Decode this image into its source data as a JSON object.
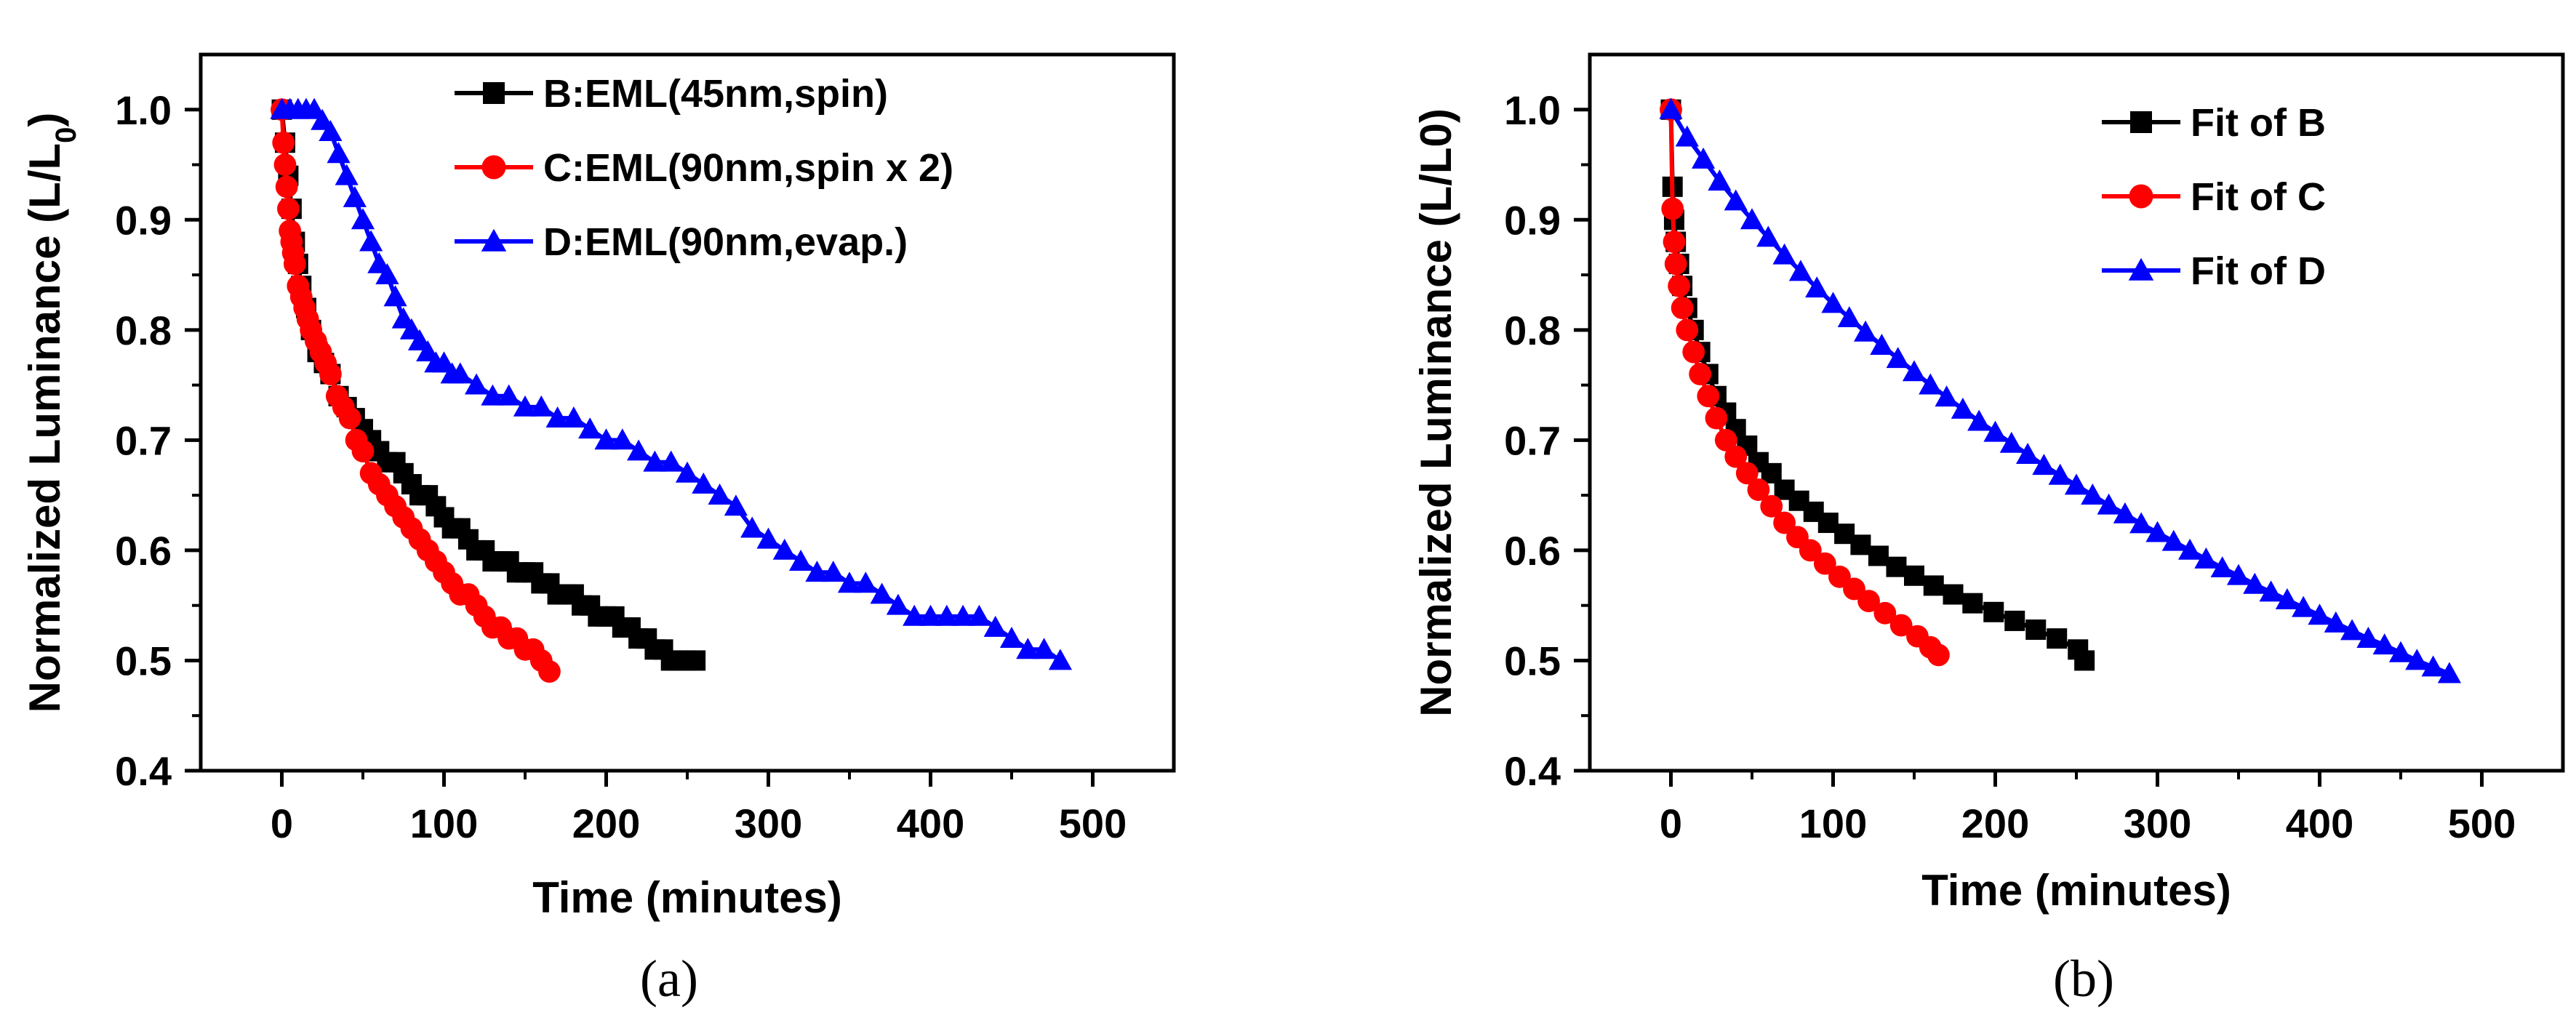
{
  "chart_data": [
    {
      "type": "scatter",
      "panel_label": "(a)",
      "title": "",
      "xlabel": "Time (minutes)",
      "ylabel_main": "Normalized Luminance (L/L",
      "ylabel_sub": "0",
      "ylabel_close": ")",
      "xlim": [
        -50,
        550
      ],
      "ylim": [
        0.4,
        1.05
      ],
      "xticks": [
        "0",
        "100",
        "200",
        "300",
        "400",
        "500"
      ],
      "yticks": [
        "0.4",
        "0.5",
        "0.6",
        "0.7",
        "0.8",
        "0.9",
        "1.0"
      ],
      "legend_position": "top-right",
      "series": [
        {
          "name": "B:EML(45nm,spin)",
          "color": "#000000",
          "marker": "square",
          "x": [
            0,
            2,
            4,
            6,
            8,
            10,
            12,
            15,
            18,
            22,
            26,
            30,
            35,
            40,
            45,
            50,
            55,
            60,
            65,
            70,
            75,
            80,
            85,
            90,
            95,
            100,
            105,
            110,
            115,
            120,
            125,
            130,
            135,
            140,
            145,
            150,
            155,
            160,
            165,
            170,
            175,
            180,
            185,
            190,
            195,
            200,
            205,
            210,
            215,
            220,
            225,
            230,
            235,
            240,
            245,
            250,
            255
          ],
          "y": [
            1.0,
            0.97,
            0.94,
            0.91,
            0.88,
            0.86,
            0.84,
            0.82,
            0.8,
            0.78,
            0.77,
            0.76,
            0.74,
            0.73,
            0.72,
            0.71,
            0.7,
            0.69,
            0.68,
            0.68,
            0.67,
            0.66,
            0.65,
            0.65,
            0.64,
            0.63,
            0.62,
            0.62,
            0.61,
            0.6,
            0.6,
            0.59,
            0.59,
            0.59,
            0.58,
            0.58,
            0.58,
            0.57,
            0.57,
            0.56,
            0.56,
            0.56,
            0.55,
            0.55,
            0.54,
            0.54,
            0.54,
            0.53,
            0.53,
            0.52,
            0.52,
            0.51,
            0.51,
            0.5,
            0.5,
            0.5,
            0.5
          ]
        },
        {
          "name": "C:EML(90nm,spin x 2)",
          "color": "#ff0000",
          "marker": "circle",
          "x": [
            0,
            1,
            2,
            3,
            4,
            5,
            6,
            7,
            8,
            10,
            12,
            14,
            16,
            18,
            21,
            24,
            27,
            30,
            34,
            38,
            42,
            46,
            50,
            55,
            60,
            65,
            70,
            75,
            80,
            85,
            90,
            95,
            100,
            105,
            110,
            115,
            120,
            125,
            130,
            135,
            140,
            145,
            150,
            155,
            160,
            165
          ],
          "y": [
            1.0,
            0.97,
            0.95,
            0.93,
            0.91,
            0.89,
            0.88,
            0.87,
            0.86,
            0.84,
            0.83,
            0.82,
            0.81,
            0.8,
            0.79,
            0.78,
            0.77,
            0.76,
            0.74,
            0.73,
            0.72,
            0.7,
            0.69,
            0.67,
            0.66,
            0.65,
            0.64,
            0.63,
            0.62,
            0.61,
            0.6,
            0.59,
            0.58,
            0.57,
            0.56,
            0.56,
            0.55,
            0.54,
            0.53,
            0.53,
            0.52,
            0.52,
            0.51,
            0.51,
            0.5,
            0.49
          ]
        },
        {
          "name": "D:EML(90nm,evap.)",
          "color": "#0000ff",
          "marker": "triangle",
          "x": [
            0,
            5,
            10,
            15,
            20,
            25,
            30,
            35,
            40,
            45,
            50,
            55,
            60,
            65,
            70,
            75,
            80,
            85,
            90,
            95,
            100,
            105,
            110,
            120,
            130,
            140,
            150,
            160,
            170,
            180,
            190,
            200,
            210,
            220,
            230,
            240,
            250,
            260,
            270,
            280,
            290,
            300,
            310,
            320,
            330,
            340,
            350,
            360,
            370,
            380,
            390,
            400,
            410,
            420,
            430,
            440,
            450,
            460,
            470,
            480
          ],
          "y": [
            1.0,
            1.0,
            1.0,
            1.0,
            1.0,
            0.99,
            0.98,
            0.96,
            0.94,
            0.92,
            0.9,
            0.88,
            0.86,
            0.85,
            0.83,
            0.81,
            0.8,
            0.79,
            0.78,
            0.77,
            0.77,
            0.76,
            0.76,
            0.75,
            0.74,
            0.74,
            0.73,
            0.73,
            0.72,
            0.72,
            0.71,
            0.7,
            0.7,
            0.69,
            0.68,
            0.68,
            0.67,
            0.66,
            0.65,
            0.64,
            0.62,
            0.61,
            0.6,
            0.59,
            0.58,
            0.58,
            0.57,
            0.57,
            0.56,
            0.55,
            0.54,
            0.54,
            0.54,
            0.54,
            0.54,
            0.53,
            0.52,
            0.51,
            0.51,
            0.5
          ]
        }
      ]
    },
    {
      "type": "line",
      "panel_label": "(b)",
      "title": "",
      "xlabel": "Time (minutes)",
      "ylabel_main": "Normalized Luminance (L/L0)",
      "ylabel_sub": "",
      "ylabel_close": "",
      "xlim": [
        -50,
        550
      ],
      "ylim": [
        0.4,
        1.05
      ],
      "xticks": [
        "0",
        "100",
        "200",
        "300",
        "400",
        "500"
      ],
      "yticks": [
        "0.4",
        "0.5",
        "0.6",
        "0.7",
        "0.8",
        "0.9",
        "1.0"
      ],
      "legend_position": "top-right",
      "series": [
        {
          "name": "Fit of B",
          "color": "#000000",
          "marker": "square",
          "x": [
            0,
            1,
            2,
            3,
            5,
            7,
            10,
            14,
            18,
            23,
            28,
            34,
            40,
            47,
            54,
            62,
            70,
            79,
            88,
            97,
            107,
            117,
            128,
            139,
            150,
            162,
            174,
            186,
            199,
            212,
            225,
            238,
            251,
            255
          ],
          "y": [
            1.0,
            0.93,
            0.9,
            0.88,
            0.86,
            0.84,
            0.82,
            0.8,
            0.78,
            0.76,
            0.74,
            0.725,
            0.71,
            0.695,
            0.68,
            0.67,
            0.655,
            0.645,
            0.635,
            0.625,
            0.615,
            0.605,
            0.595,
            0.585,
            0.577,
            0.568,
            0.56,
            0.552,
            0.544,
            0.536,
            0.528,
            0.52,
            0.51,
            0.5
          ]
        },
        {
          "name": "Fit of C",
          "color": "#ff0000",
          "marker": "circle",
          "x": [
            0,
            1,
            2,
            3,
            5,
            7,
            10,
            14,
            18,
            23,
            28,
            34,
            40,
            47,
            54,
            62,
            70,
            78,
            86,
            95,
            104,
            113,
            122,
            132,
            142,
            152,
            160,
            165
          ],
          "y": [
            1.0,
            0.91,
            0.88,
            0.86,
            0.84,
            0.82,
            0.8,
            0.78,
            0.76,
            0.74,
            0.72,
            0.7,
            0.685,
            0.67,
            0.655,
            0.64,
            0.625,
            0.612,
            0.6,
            0.588,
            0.576,
            0.565,
            0.554,
            0.543,
            0.532,
            0.522,
            0.512,
            0.505
          ]
        },
        {
          "name": "Fit of D",
          "color": "#0000ff",
          "marker": "triangle",
          "x": [
            0,
            10,
            20,
            30,
            40,
            50,
            60,
            70,
            80,
            90,
            100,
            110,
            120,
            130,
            140,
            150,
            160,
            170,
            180,
            190,
            200,
            210,
            220,
            230,
            240,
            250,
            260,
            270,
            280,
            290,
            300,
            310,
            320,
            330,
            340,
            350,
            360,
            370,
            380,
            390,
            400,
            410,
            420,
            430,
            440,
            450,
            460,
            470,
            480
          ],
          "y": [
            1.0,
            0.975,
            0.955,
            0.935,
            0.917,
            0.9,
            0.884,
            0.868,
            0.853,
            0.838,
            0.824,
            0.811,
            0.798,
            0.786,
            0.774,
            0.762,
            0.75,
            0.739,
            0.728,
            0.717,
            0.707,
            0.697,
            0.687,
            0.677,
            0.668,
            0.659,
            0.65,
            0.641,
            0.633,
            0.624,
            0.616,
            0.608,
            0.6,
            0.592,
            0.584,
            0.577,
            0.569,
            0.562,
            0.555,
            0.548,
            0.541,
            0.534,
            0.527,
            0.52,
            0.514,
            0.507,
            0.5,
            0.494,
            0.488
          ]
        }
      ]
    }
  ]
}
